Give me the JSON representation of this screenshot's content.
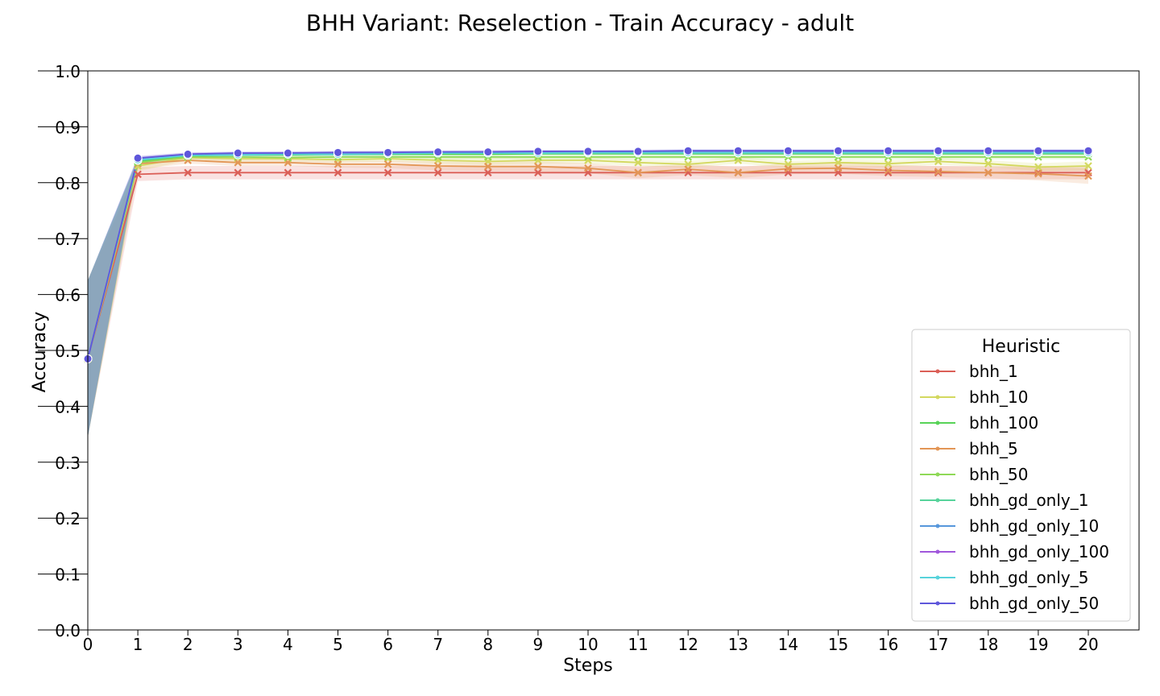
{
  "chart_data": {
    "type": "line",
    "title": "BHH Variant: Reselection - Train Accuracy - adult",
    "xlabel": "Steps",
    "ylabel": "Accuracy",
    "xlim": [
      0,
      21
    ],
    "ylim": [
      0.0,
      1.0
    ],
    "x": [
      0,
      1,
      2,
      3,
      4,
      5,
      6,
      7,
      8,
      9,
      10,
      11,
      12,
      13,
      14,
      15,
      16,
      17,
      18,
      19,
      20
    ],
    "xticks": [
      "0",
      "1",
      "2",
      "3",
      "4",
      "5",
      "6",
      "7",
      "8",
      "9",
      "10",
      "11",
      "12",
      "13",
      "14",
      "15",
      "16",
      "17",
      "18",
      "19",
      "20"
    ],
    "yticks": [
      "0.0",
      "0.1",
      "0.2",
      "0.3",
      "0.4",
      "0.5",
      "0.6",
      "0.7",
      "0.8",
      "0.9",
      "1.0"
    ],
    "grid": false,
    "legend": {
      "title": "Heuristic",
      "position": "lower-right"
    },
    "series": [
      {
        "name": "bhh_1",
        "color": "#db5f57",
        "marker": "x",
        "values": [
          0.485,
          0.815,
          0.818,
          0.818,
          0.818,
          0.818,
          0.818,
          0.818,
          0.818,
          0.818,
          0.818,
          0.818,
          0.818,
          0.818,
          0.818,
          0.818,
          0.818,
          0.818,
          0.818,
          0.818,
          0.818
        ],
        "band": [
          0.14,
          0.012,
          0.012,
          0.012,
          0.012,
          0.012,
          0.012,
          0.012,
          0.012,
          0.012,
          0.012,
          0.012,
          0.012,
          0.012,
          0.012,
          0.012,
          0.012,
          0.012,
          0.012,
          0.012,
          0.012
        ]
      },
      {
        "name": "bhh_10",
        "color": "#d3d85f",
        "marker": "x",
        "values": [
          0.485,
          0.83,
          0.845,
          0.843,
          0.843,
          0.841,
          0.843,
          0.84,
          0.838,
          0.84,
          0.84,
          0.836,
          0.833,
          0.84,
          0.833,
          0.836,
          0.834,
          0.838,
          0.834,
          0.828,
          0.83
        ],
        "band": [
          0.14,
          0.01,
          0.005,
          0.005,
          0.005,
          0.005,
          0.005,
          0.006,
          0.006,
          0.006,
          0.006,
          0.006,
          0.006,
          0.006,
          0.006,
          0.006,
          0.006,
          0.006,
          0.006,
          0.007,
          0.008
        ]
      },
      {
        "name": "bhh_100",
        "color": "#57d357",
        "marker": "x",
        "values": [
          0.485,
          0.838,
          0.848,
          0.85,
          0.85,
          0.851,
          0.851,
          0.851,
          0.851,
          0.852,
          0.852,
          0.852,
          0.852,
          0.852,
          0.852,
          0.852,
          0.852,
          0.852,
          0.852,
          0.852,
          0.852
        ],
        "band": [
          0.14,
          0.005,
          0.003,
          0.003,
          0.003,
          0.003,
          0.003,
          0.003,
          0.003,
          0.003,
          0.003,
          0.003,
          0.003,
          0.003,
          0.003,
          0.003,
          0.003,
          0.003,
          0.003,
          0.003,
          0.003
        ]
      },
      {
        "name": "bhh_5",
        "color": "#e39656",
        "marker": "x",
        "values": [
          0.485,
          0.834,
          0.84,
          0.836,
          0.836,
          0.833,
          0.833,
          0.83,
          0.829,
          0.829,
          0.826,
          0.818,
          0.824,
          0.818,
          0.825,
          0.826,
          0.822,
          0.82,
          0.818,
          0.816,
          0.812
        ],
        "band": [
          0.14,
          0.01,
          0.006,
          0.006,
          0.006,
          0.006,
          0.007,
          0.008,
          0.008,
          0.009,
          0.009,
          0.01,
          0.01,
          0.01,
          0.01,
          0.01,
          0.01,
          0.01,
          0.01,
          0.012,
          0.014
        ]
      },
      {
        "name": "bhh_50",
        "color": "#8fd957",
        "marker": "x",
        "values": [
          0.485,
          0.836,
          0.846,
          0.846,
          0.845,
          0.846,
          0.846,
          0.846,
          0.846,
          0.846,
          0.846,
          0.846,
          0.846,
          0.846,
          0.846,
          0.846,
          0.846,
          0.846,
          0.846,
          0.846,
          0.846
        ],
        "band": [
          0.14,
          0.006,
          0.004,
          0.004,
          0.004,
          0.004,
          0.004,
          0.004,
          0.004,
          0.004,
          0.004,
          0.004,
          0.004,
          0.004,
          0.004,
          0.004,
          0.004,
          0.004,
          0.004,
          0.004,
          0.004
        ]
      },
      {
        "name": "bhh_gd_only_1",
        "color": "#57d39b",
        "marker": "o",
        "values": [
          0.485,
          0.84,
          0.849,
          0.85,
          0.851,
          0.851,
          0.852,
          0.853,
          0.853,
          0.853,
          0.853,
          0.853,
          0.853,
          0.853,
          0.853,
          0.853,
          0.853,
          0.853,
          0.853,
          0.853,
          0.853
        ],
        "band": [
          0.14,
          0.004,
          0.003,
          0.003,
          0.003,
          0.003,
          0.003,
          0.003,
          0.003,
          0.003,
          0.003,
          0.003,
          0.003,
          0.003,
          0.003,
          0.003,
          0.003,
          0.003,
          0.003,
          0.003,
          0.003
        ]
      },
      {
        "name": "bhh_gd_only_10",
        "color": "#5797db",
        "marker": "o",
        "values": [
          0.485,
          0.842,
          0.85,
          0.851,
          0.852,
          0.852,
          0.853,
          0.853,
          0.854,
          0.854,
          0.854,
          0.855,
          0.855,
          0.855,
          0.855,
          0.855,
          0.855,
          0.855,
          0.855,
          0.855,
          0.855
        ],
        "band": [
          0.14,
          0.004,
          0.003,
          0.003,
          0.003,
          0.003,
          0.003,
          0.003,
          0.003,
          0.003,
          0.003,
          0.003,
          0.003,
          0.003,
          0.003,
          0.003,
          0.003,
          0.003,
          0.003,
          0.003,
          0.003
        ]
      },
      {
        "name": "bhh_gd_only_100",
        "color": "#a057db",
        "marker": "o",
        "values": [
          0.485,
          0.843,
          0.851,
          0.852,
          0.853,
          0.853,
          0.854,
          0.854,
          0.855,
          0.855,
          0.855,
          0.856,
          0.856,
          0.856,
          0.856,
          0.856,
          0.856,
          0.856,
          0.856,
          0.856,
          0.856
        ],
        "band": [
          0.14,
          0.004,
          0.003,
          0.003,
          0.003,
          0.003,
          0.003,
          0.003,
          0.003,
          0.003,
          0.003,
          0.003,
          0.003,
          0.003,
          0.003,
          0.003,
          0.003,
          0.003,
          0.003,
          0.003,
          0.003
        ]
      },
      {
        "name": "bhh_gd_only_5",
        "color": "#57d3db",
        "marker": "o",
        "values": [
          0.485,
          0.841,
          0.849,
          0.85,
          0.851,
          0.851,
          0.852,
          0.853,
          0.853,
          0.853,
          0.854,
          0.854,
          0.854,
          0.854,
          0.854,
          0.854,
          0.854,
          0.854,
          0.854,
          0.854,
          0.854
        ],
        "band": [
          0.14,
          0.004,
          0.003,
          0.003,
          0.003,
          0.003,
          0.003,
          0.003,
          0.003,
          0.003,
          0.003,
          0.003,
          0.003,
          0.003,
          0.003,
          0.003,
          0.003,
          0.003,
          0.003,
          0.003,
          0.003
        ]
      },
      {
        "name": "bhh_gd_only_50",
        "color": "#5f57db",
        "marker": "o",
        "values": [
          0.485,
          0.844,
          0.851,
          0.853,
          0.853,
          0.854,
          0.854,
          0.855,
          0.855,
          0.856,
          0.856,
          0.856,
          0.857,
          0.857,
          0.857,
          0.857,
          0.857,
          0.857,
          0.857,
          0.857,
          0.857
        ],
        "band": [
          0.14,
          0.004,
          0.003,
          0.003,
          0.003,
          0.003,
          0.003,
          0.003,
          0.003,
          0.003,
          0.003,
          0.003,
          0.003,
          0.003,
          0.003,
          0.003,
          0.003,
          0.003,
          0.003,
          0.003,
          0.003
        ]
      }
    ]
  }
}
